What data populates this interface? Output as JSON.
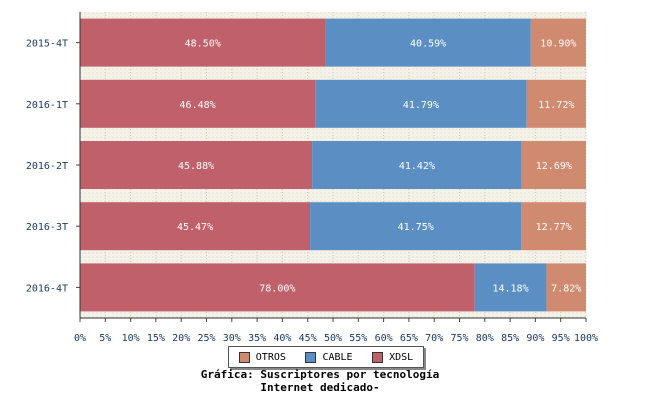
{
  "chart_data": {
    "type": "bar",
    "orientation": "horizontal",
    "stacked": true,
    "categories": [
      "2015-4T",
      "2016-1T",
      "2016-2T",
      "2016-3T",
      "2016-4T"
    ],
    "series": [
      {
        "name": "XDSL",
        "color": "#c0606a",
        "values": [
          48.5,
          46.48,
          45.88,
          45.47,
          78.0
        ]
      },
      {
        "name": "CABLE",
        "color": "#5b8fc4",
        "values": [
          40.59,
          41.79,
          41.42,
          41.75,
          14.18
        ]
      },
      {
        "name": "OTROS",
        "color": "#d08a70",
        "values": [
          10.9,
          11.72,
          12.69,
          12.77,
          7.82
        ]
      }
    ],
    "value_labels": [
      [
        "48.50%",
        "46.48%",
        "45.88%",
        "45.47%",
        "78.00%"
      ],
      [
        "40.59%",
        "41.79%",
        "41.42%",
        "41.75%",
        "14.18%"
      ],
      [
        "10.90%",
        "11.72%",
        "12.69%",
        "12.77%",
        "7.82%"
      ]
    ],
    "xlim": [
      0,
      100
    ],
    "xticks": [
      "0%",
      "5%",
      "10%",
      "15%",
      "20%",
      "25%",
      "30%",
      "35%",
      "40%",
      "45%",
      "50%",
      "55%",
      "60%",
      "65%",
      "70%",
      "75%",
      "80%",
      "85%",
      "90%",
      "95%",
      "100%"
    ],
    "legend_order": [
      "OTROS",
      "CABLE",
      "XDSL"
    ],
    "legend_placement": "bottom",
    "caption_line1": "Gráfica: Suscriptores por tecnología",
    "caption_line2": "Internet dedicado-"
  }
}
